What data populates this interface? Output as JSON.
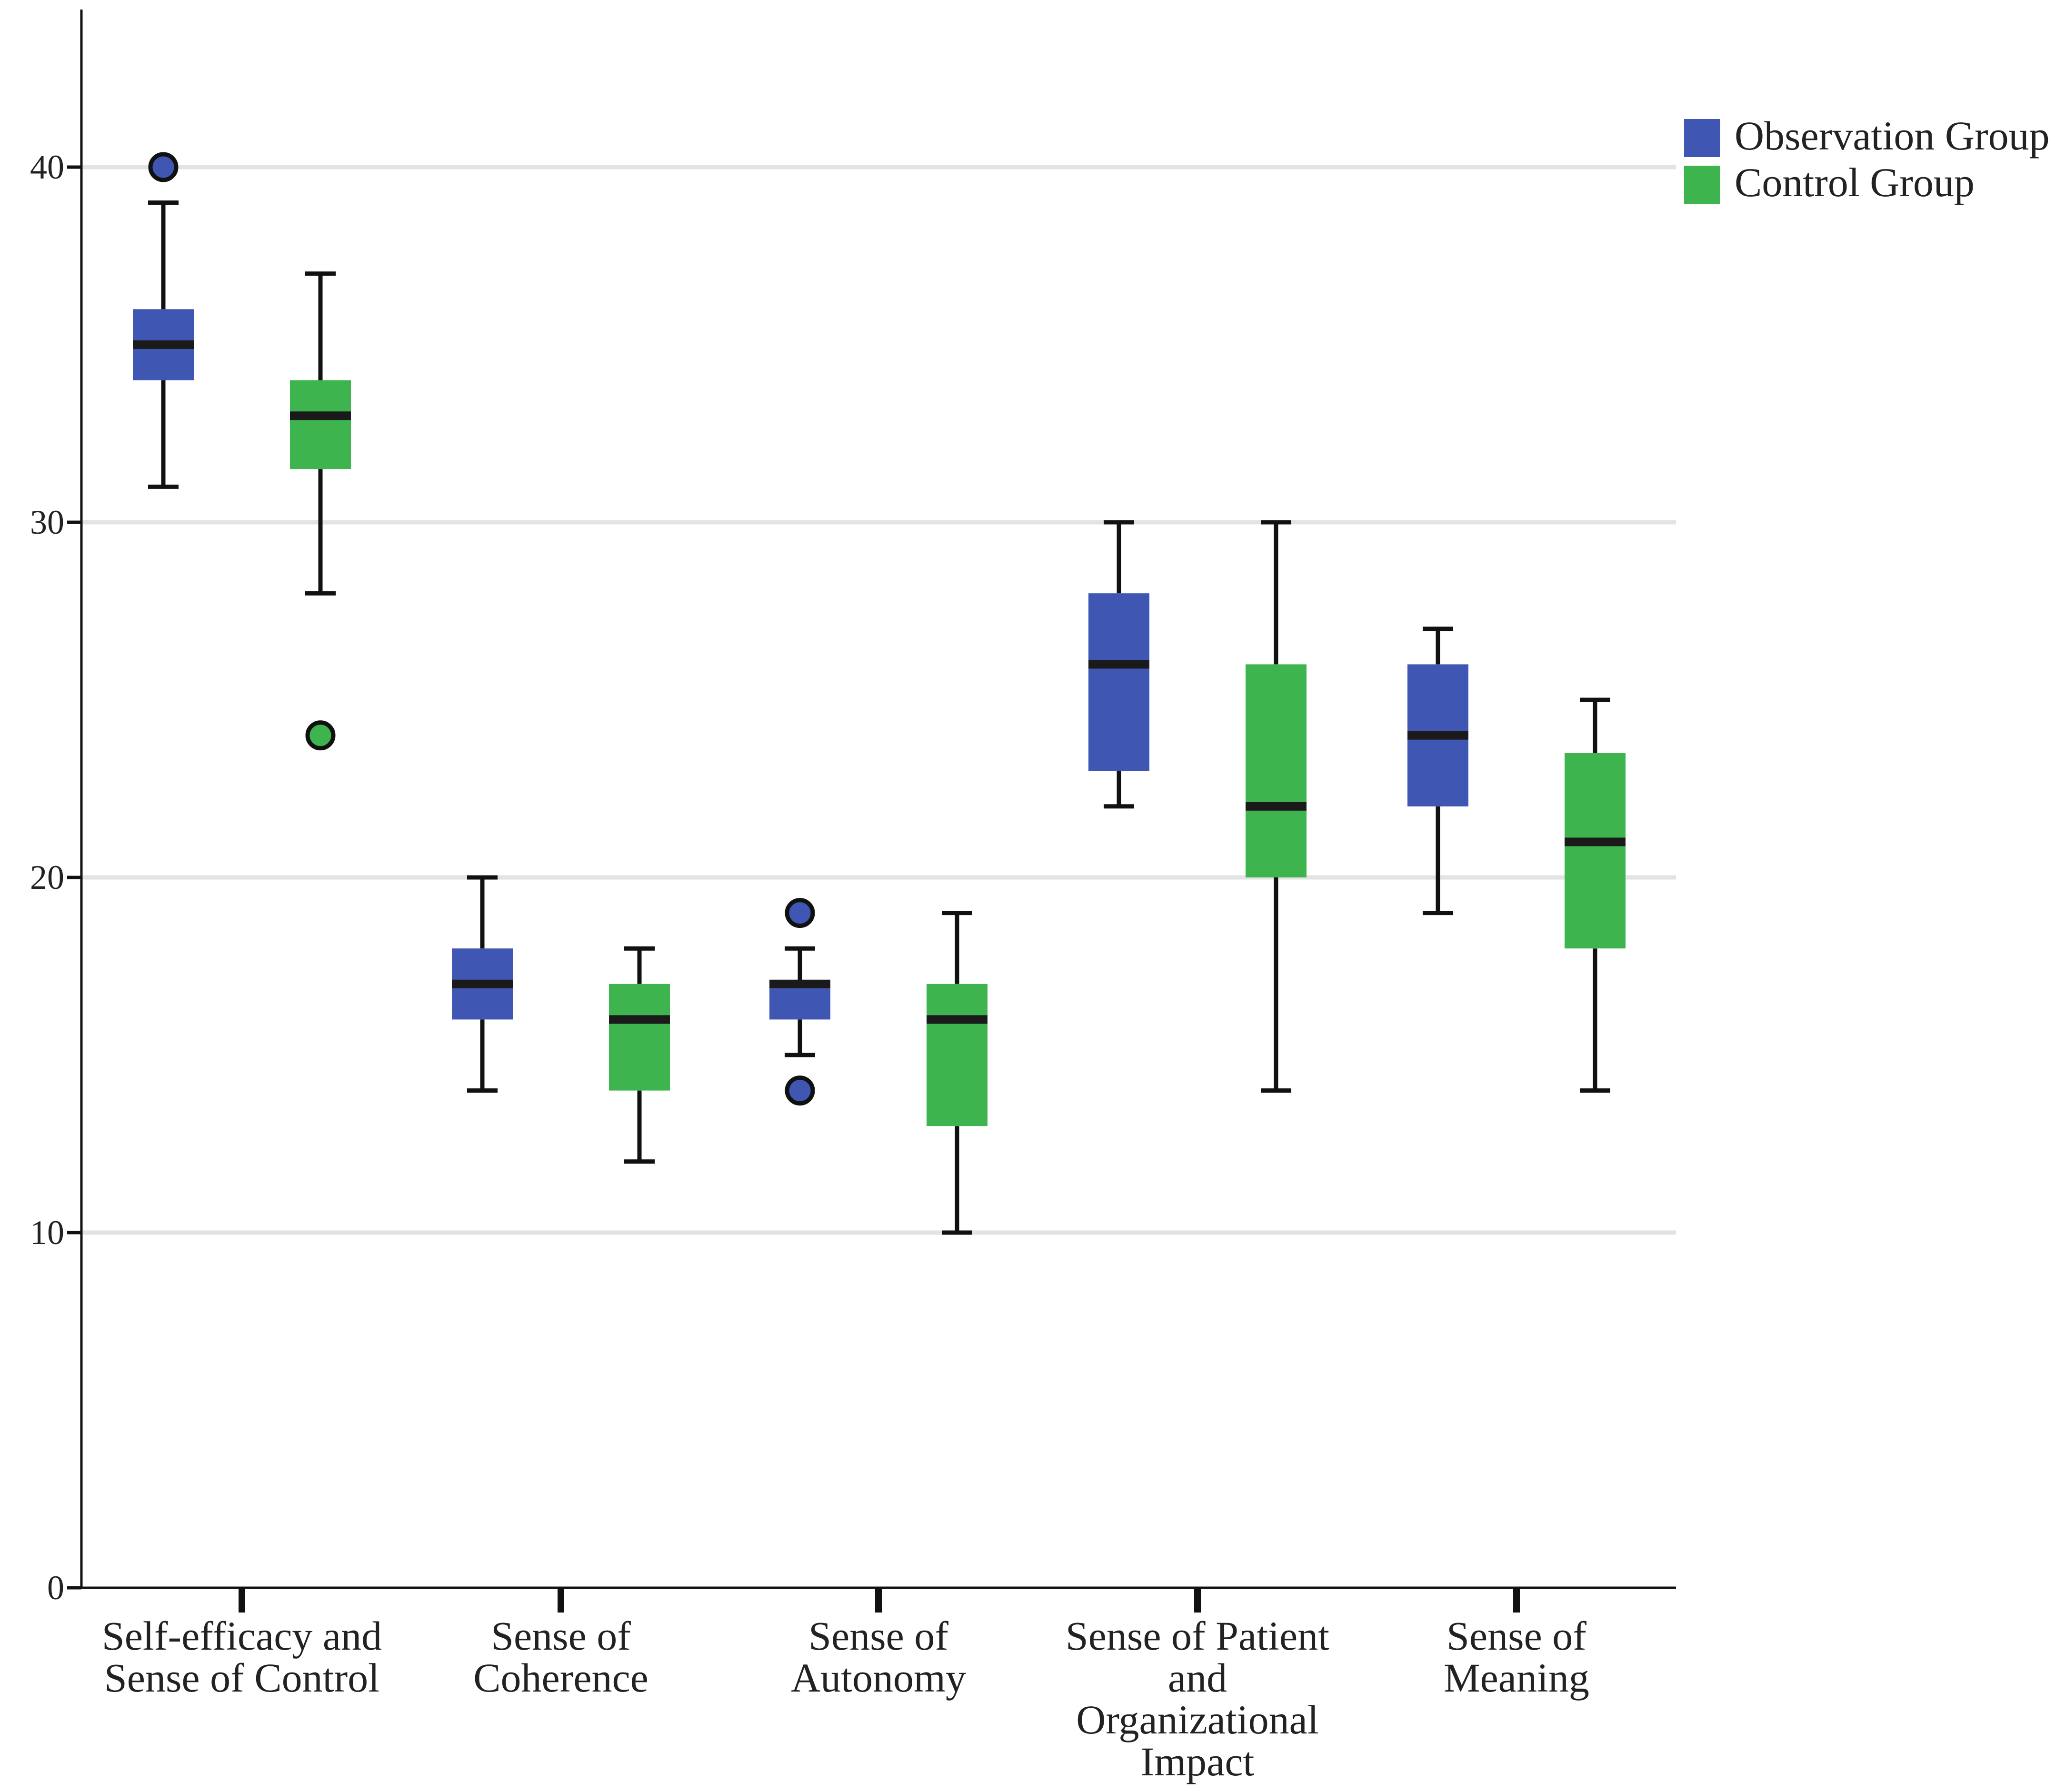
{
  "chart_data": {
    "type": "boxplot",
    "title": "",
    "xlabel": "",
    "ylabel": "",
    "ylim": [
      0,
      45
    ],
    "yticks": [
      0,
      10,
      20,
      30,
      40
    ],
    "grid": true,
    "legend_position": "top-right",
    "colors": {
      "observation": "#3f56b3",
      "control": "#3db44e",
      "median": "#1a1a1a",
      "grid": "#e3e3e3",
      "axis": "#111111"
    },
    "series": [
      {
        "name": "Observation Group",
        "key": "observation"
      },
      {
        "name": "Control Group",
        "key": "control"
      }
    ],
    "categories": [
      {
        "lines": [
          "Self-efficacy and",
          "Sense of Control"
        ],
        "boxes": [
          {
            "series": "observation",
            "whisker_low": 31,
            "q1": 34,
            "median": 35,
            "q3": 36,
            "whisker_high": 39,
            "outliers": [
              40
            ]
          },
          {
            "series": "control",
            "whisker_low": 28,
            "q1": 31.5,
            "median": 33,
            "q3": 34,
            "whisker_high": 37,
            "outliers": [
              24
            ]
          }
        ]
      },
      {
        "lines": [
          "Sense of",
          "Coherence"
        ],
        "boxes": [
          {
            "series": "observation",
            "whisker_low": 14,
            "q1": 16,
            "median": 17,
            "q3": 18,
            "whisker_high": 20,
            "outliers": []
          },
          {
            "series": "control",
            "whisker_low": 12,
            "q1": 14,
            "median": 16,
            "q3": 17,
            "whisker_high": 18,
            "outliers": []
          }
        ]
      },
      {
        "lines": [
          "Sense of",
          "Autonomy"
        ],
        "boxes": [
          {
            "series": "observation",
            "whisker_low": 15,
            "q1": 16,
            "median": 17,
            "q3": 17,
            "whisker_high": 18,
            "outliers": [
              19,
              14
            ]
          },
          {
            "series": "control",
            "whisker_low": 10,
            "q1": 13,
            "median": 16,
            "q3": 17,
            "whisker_high": 19,
            "outliers": []
          }
        ]
      },
      {
        "lines": [
          "Sense of Patient",
          "and",
          "Organizational",
          "Impact"
        ],
        "boxes": [
          {
            "series": "observation",
            "whisker_low": 22,
            "q1": 23,
            "median": 26,
            "q3": 28,
            "whisker_high": 30,
            "outliers": []
          },
          {
            "series": "control",
            "whisker_low": 14,
            "q1": 20,
            "median": 22,
            "q3": 26,
            "whisker_high": 30,
            "outliers": []
          }
        ]
      },
      {
        "lines": [
          "Sense of",
          "Meaning"
        ],
        "boxes": [
          {
            "series": "observation",
            "whisker_low": 19,
            "q1": 22,
            "median": 24,
            "q3": 26,
            "whisker_high": 27,
            "outliers": []
          },
          {
            "series": "control",
            "whisker_low": 14,
            "q1": 18,
            "median": 21,
            "q3": 23.5,
            "whisker_high": 25,
            "outliers": []
          }
        ]
      }
    ]
  }
}
